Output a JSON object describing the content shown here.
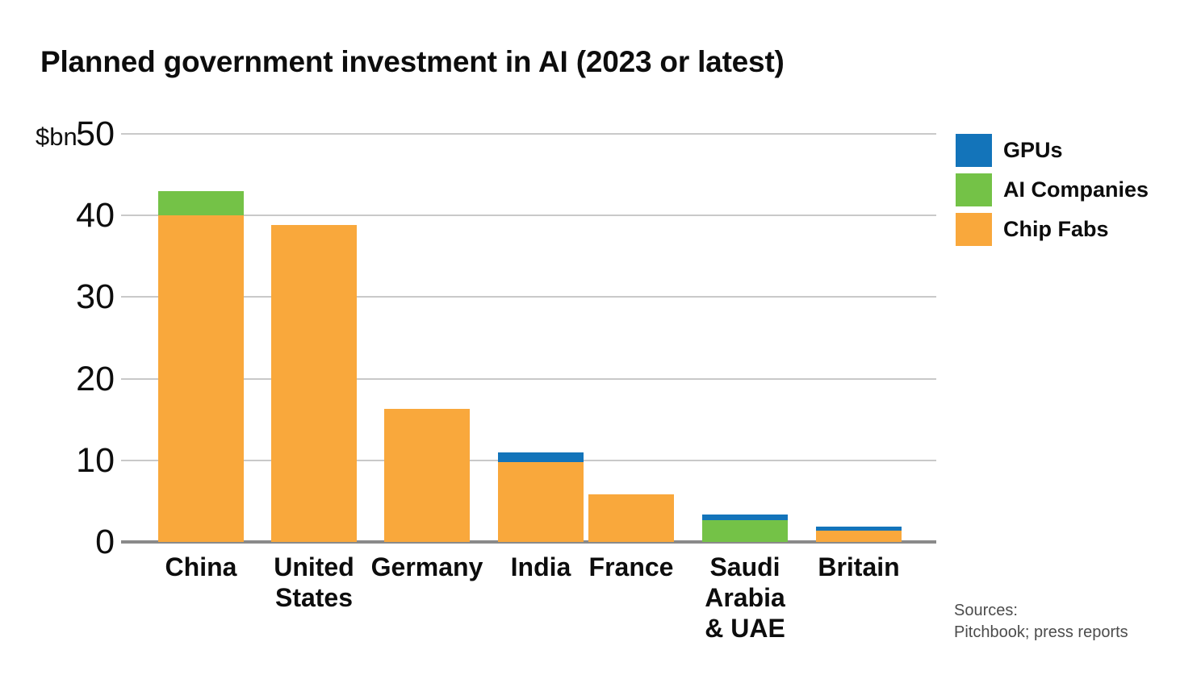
{
  "title": "Planned government investment in AI (2023 or latest)",
  "y_axis": {
    "unit_label": "$bn",
    "ticks": [
      0,
      10,
      20,
      30,
      40,
      50
    ],
    "max": 50
  },
  "legend": {
    "items": [
      {
        "label": "GPUs",
        "color": "#1374BA"
      },
      {
        "label": "AI Companies",
        "color": "#74C247"
      },
      {
        "label": "Chip Fabs",
        "color": "#F9A83C"
      }
    ]
  },
  "sources": {
    "label": "Sources:",
    "detail": "Pitchbook; press reports"
  },
  "chart_data": {
    "type": "bar",
    "stacked": true,
    "title": "Planned government investment in AI (2023 or latest)",
    "xlabel": "",
    "ylabel": "$bn",
    "ylim": [
      0,
      50
    ],
    "grid": true,
    "legend_position": "top-right",
    "categories": [
      "China",
      "United States",
      "Germany",
      "India",
      "France",
      "Saudi Arabia & UAE",
      "Britain"
    ],
    "category_lines": [
      [
        "China"
      ],
      [
        "United",
        "States"
      ],
      [
        "Germany"
      ],
      [
        "India"
      ],
      [
        "France"
      ],
      [
        "Saudi",
        "Arabia",
        "& UAE"
      ],
      [
        "Britain"
      ]
    ],
    "series": [
      {
        "name": "Chip Fabs",
        "color": "#F9A83C",
        "values": [
          40,
          38.8,
          16.3,
          9.8,
          5.8,
          0,
          1.4
        ]
      },
      {
        "name": "AI Companies",
        "color": "#74C247",
        "values": [
          3,
          0,
          0,
          0,
          0,
          2.7,
          0
        ]
      },
      {
        "name": "GPUs",
        "color": "#1374BA",
        "values": [
          0,
          0,
          0,
          1.2,
          0,
          0.7,
          0.5
        ]
      }
    ],
    "stack_order_bottom_to_top": [
      "Chip Fabs",
      "AI Companies",
      "GPUs"
    ],
    "totals": [
      43,
      38.8,
      16.3,
      11,
      5.8,
      3.4,
      1.9
    ]
  }
}
